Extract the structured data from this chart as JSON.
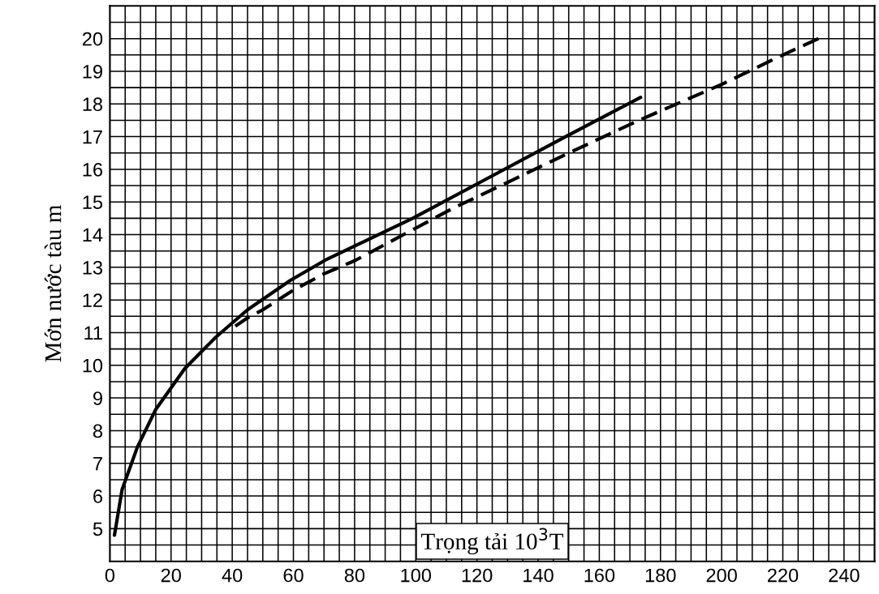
{
  "chart_data": {
    "type": "line",
    "xlabel": "Trọng tải 10$^{3}$T",
    "ylabel": "Mớn nước tàu m",
    "series": [
      {
        "color": "#000000",
        "line_style": "solid",
        "x": [
          1.5,
          4,
          9,
          15,
          24.5,
          34.5,
          45,
          59,
          71,
          99,
          123,
          149,
          173.5
        ],
        "values": [
          4.8,
          6.2,
          7.5,
          8.65,
          9.9,
          10.85,
          11.7,
          12.6,
          13.25,
          14.5,
          15.7,
          17.0,
          18.2
        ]
      },
      {
        "color": "#000000",
        "line_style": "dashed",
        "x": [
          41,
          45,
          50,
          60,
          70,
          80,
          90,
          100,
          112,
          130,
          150,
          173,
          200,
          220,
          234
        ],
        "values": [
          11.2,
          11.45,
          11.7,
          12.3,
          12.8,
          13.2,
          13.7,
          14.2,
          14.8,
          15.6,
          16.5,
          17.5,
          18.6,
          19.5,
          20.1
        ]
      }
    ],
    "xlim": [
      0,
      250
    ],
    "ylim": [
      4,
      21
    ],
    "xticks": [
      {
        "value": 0,
        "label": "0"
      },
      {
        "value": 5,
        "label": null
      },
      {
        "value": 10,
        "label": null
      },
      {
        "value": 15,
        "label": null
      },
      20,
      {
        "value": 25,
        "label": null
      },
      {
        "value": 30,
        "label": null
      },
      {
        "value": 35,
        "label": null
      },
      40,
      {
        "value": 45,
        "label": null
      },
      {
        "value": 50,
        "label": null
      },
      {
        "value": 55,
        "label": null
      },
      60,
      {
        "value": 65,
        "label": null
      },
      {
        "value": 70,
        "label": null
      },
      {
        "value": 75,
        "label": null
      },
      80,
      {
        "value": 85,
        "label": null
      },
      {
        "value": 90,
        "label": null
      },
      {
        "value": 95,
        "label": null
      },
      100,
      {
        "value": 105,
        "label": null
      },
      {
        "value": 110,
        "label": null
      },
      {
        "value": 115,
        "label": null
      },
      120,
      {
        "value": 125,
        "label": null
      },
      {
        "value": 130,
        "label": null
      },
      {
        "value": 135,
        "label": null
      },
      140,
      {
        "value": 145,
        "label": null
      },
      {
        "value": 150,
        "label": null
      },
      {
        "value": 155,
        "label": null
      },
      160,
      {
        "value": 165,
        "label": null
      },
      {
        "value": 170,
        "label": null
      },
      {
        "value": 175,
        "label": null
      },
      180,
      {
        "value": 185,
        "label": null
      },
      {
        "value": 190,
        "label": null
      },
      {
        "value": 195,
        "label": null
      },
      200,
      {
        "value": 205,
        "label": null
      },
      {
        "value": 210,
        "label": null
      },
      {
        "value": 215,
        "label": null
      },
      220,
      {
        "value": 225,
        "label": null
      },
      {
        "value": 230,
        "label": null
      },
      {
        "value": 235,
        "label": null
      },
      240,
      {
        "value": 245,
        "label": null
      },
      {
        "value": 250,
        "label": null
      }
    ],
    "yticks": [
      {
        "value": 4,
        "label": null
      },
      {
        "value": 4.5,
        "label": null
      },
      5,
      {
        "value": 5.5,
        "label": null
      },
      6,
      {
        "value": 6.5,
        "label": null
      },
      7,
      {
        "value": 7.5,
        "label": null
      },
      8,
      {
        "value": 8.5,
        "label": null
      },
      9,
      {
        "value": 9.5,
        "label": null
      },
      10,
      {
        "value": 10.5,
        "label": null
      },
      11,
      {
        "value": 11.5,
        "label": null
      },
      12,
      {
        "value": 12.5,
        "label": null
      },
      13,
      {
        "value": 13.5,
        "label": null
      },
      14,
      {
        "value": 14.5,
        "label": null
      },
      15,
      {
        "value": 15.5,
        "label": null
      },
      16,
      {
        "value": 16.5,
        "label": null
      },
      17,
      {
        "value": 17.5,
        "label": null
      },
      18,
      {
        "value": 18.5,
        "label": null
      },
      19,
      {
        "value": 19.5,
        "label": null
      },
      20,
      {
        "value": 20.5,
        "label": null
      },
      {
        "value": 21,
        "label": null
      }
    ],
    "grid": true
  }
}
